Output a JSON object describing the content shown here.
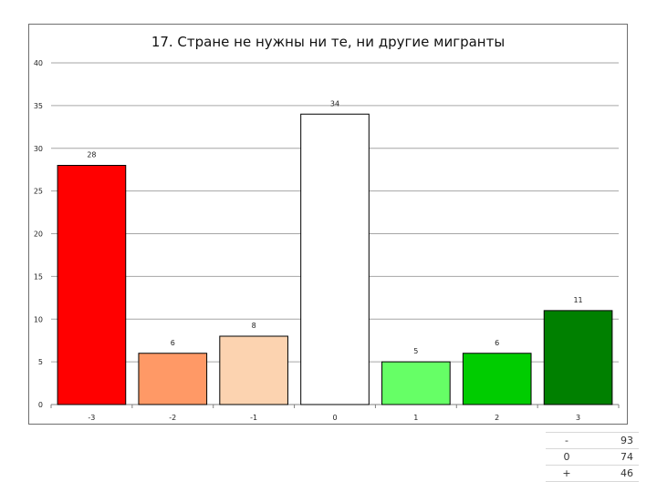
{
  "chart_data": {
    "type": "bar",
    "title": "17. Стране не нужны ни те, ни другие мигранты",
    "xlabel": "",
    "ylabel": "",
    "categories": [
      "-3",
      "-2",
      "-1",
      "0",
      "1",
      "2",
      "3"
    ],
    "values": [
      28,
      6,
      8,
      34,
      5,
      6,
      11
    ],
    "data_labels": [
      "28",
      "6",
      "8",
      "34",
      "5",
      "6",
      "11"
    ],
    "colors": [
      "#ff0000",
      "#ff9966",
      "#fcd3b0",
      "#ffffff",
      "#66ff66",
      "#00cc00",
      "#008000"
    ],
    "ylim": [
      0,
      40
    ],
    "yticks": [
      "0",
      "5",
      "10",
      "15",
      "20",
      "25",
      "30",
      "35",
      "40"
    ],
    "grid": true,
    "legend": "none"
  },
  "summary_table": [
    {
      "key": "-",
      "value": "93"
    },
    {
      "key": "0",
      "value": "74"
    },
    {
      "key": "+",
      "value": "46"
    }
  ]
}
